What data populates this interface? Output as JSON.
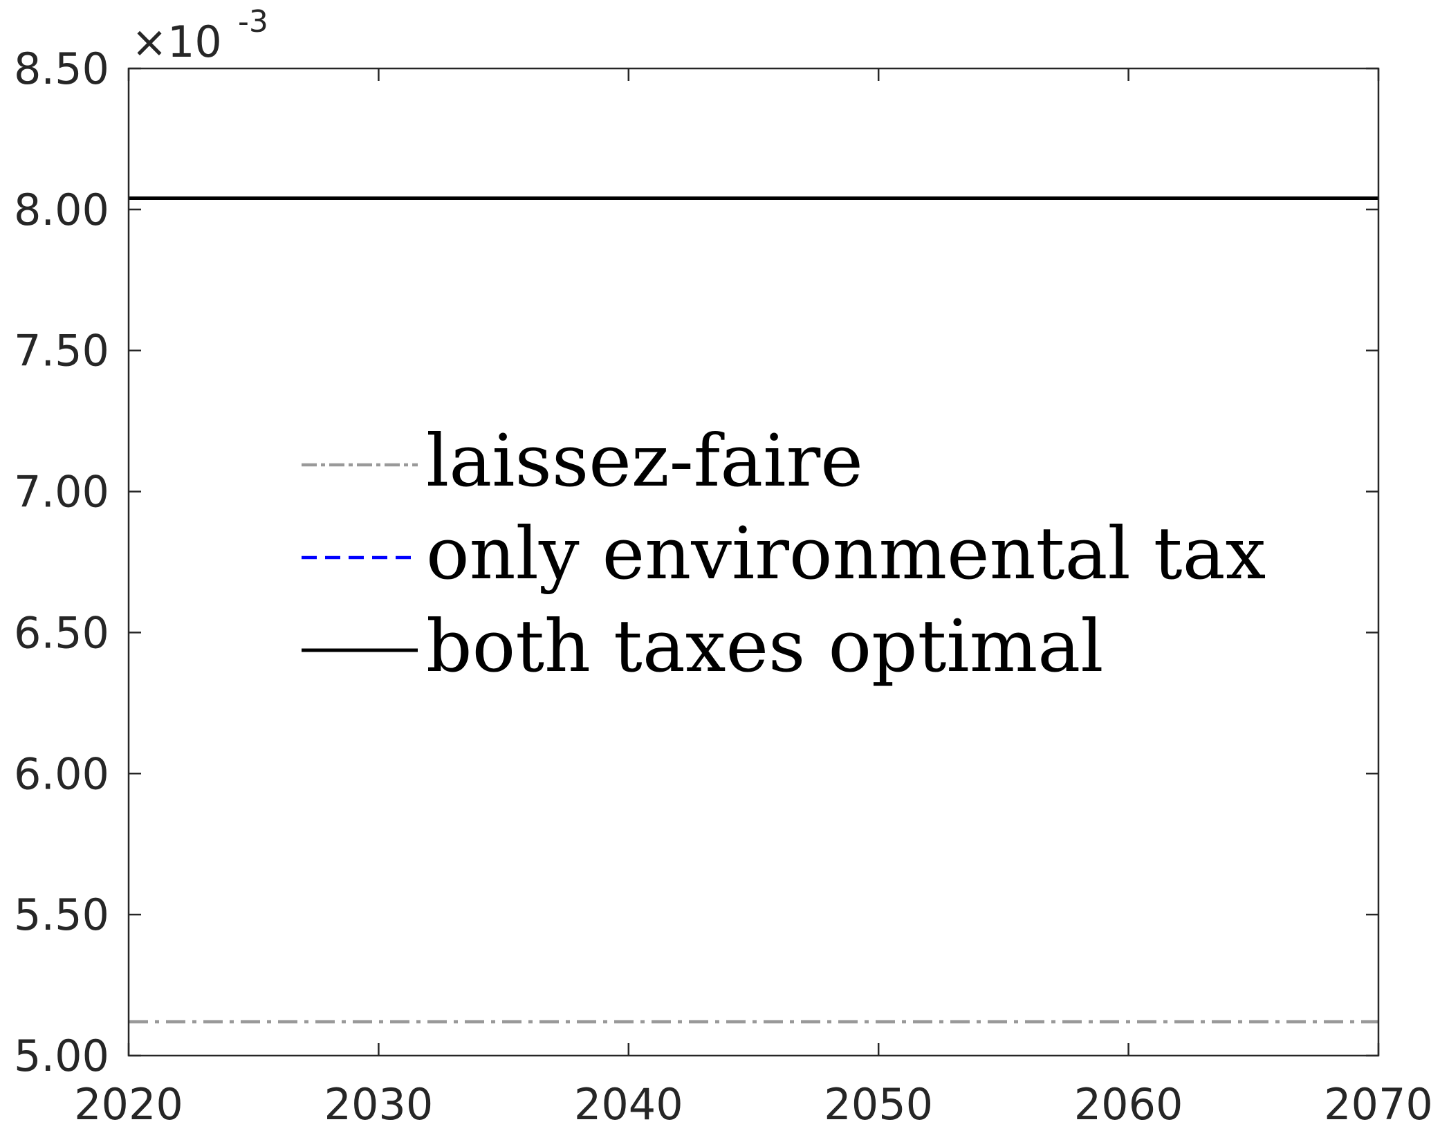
{
  "chart_data": {
    "type": "line",
    "title": "",
    "xlabel": "",
    "ylabel": "",
    "xlim": [
      2020,
      2070
    ],
    "ylim": [
      5.0,
      8.5
    ],
    "y_multiplier_label": "×10",
    "y_multiplier_exponent": "-3",
    "x_ticks": [
      2020,
      2030,
      2040,
      2050,
      2060,
      2070
    ],
    "x_tick_labels": [
      "2020",
      "2030",
      "2040",
      "2050",
      "2060",
      "2070"
    ],
    "y_ticks": [
      5.0,
      5.5,
      6.0,
      6.5,
      7.0,
      7.5,
      8.0,
      8.5
    ],
    "y_tick_labels": [
      "5.00",
      "5.50",
      "6.00",
      "6.50",
      "7.00",
      "7.50",
      "8.00",
      "8.50"
    ],
    "grid": false,
    "legend_position": "center-left",
    "series": [
      {
        "name": "laissez-faire",
        "color": "#999999",
        "style": "dash-dot",
        "x": [
          2020,
          2070
        ],
        "y": [
          5.12,
          5.12
        ]
      },
      {
        "name": "only environmental tax",
        "color": "#0000ff",
        "style": "dashed",
        "x": [
          2020,
          2070
        ],
        "y": [
          8.04,
          8.04
        ]
      },
      {
        "name": "both taxes optimal",
        "color": "#000000",
        "style": "solid",
        "x": [
          2020,
          2070
        ],
        "y": [
          8.04,
          8.04
        ]
      }
    ]
  }
}
